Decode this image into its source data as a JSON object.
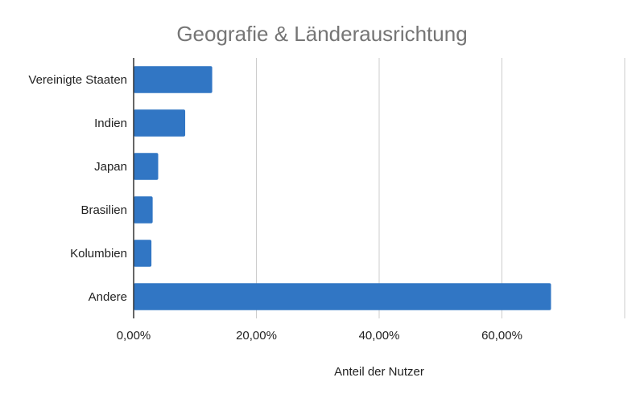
{
  "chart_data": {
    "type": "bar",
    "orientation": "horizontal",
    "title": "Geografie & Länderausrichtung",
    "xlabel": "Anteil der Nutzer",
    "ylabel": "",
    "categories": [
      "Vereinigte Staaten",
      "Indien",
      "Japan",
      "Brasilien",
      "Kolumbien",
      "Andere"
    ],
    "series": [
      {
        "values": [
          12.8,
          8.4,
          4.0,
          3.1,
          2.9,
          68.0
        ]
      }
    ],
    "xlim": [
      0,
      80
    ],
    "x_ticks": [
      0,
      20,
      40,
      60,
      80
    ],
    "x_tick_labels": [
      "0,00%",
      "20,00%",
      "40,00%",
      "60,00%",
      ""
    ],
    "grid": "vertical",
    "legend": "none",
    "colors": {
      "bar": "#3176c4",
      "grid": "#cccccc",
      "axis": "#333333",
      "title": "#757575"
    }
  }
}
